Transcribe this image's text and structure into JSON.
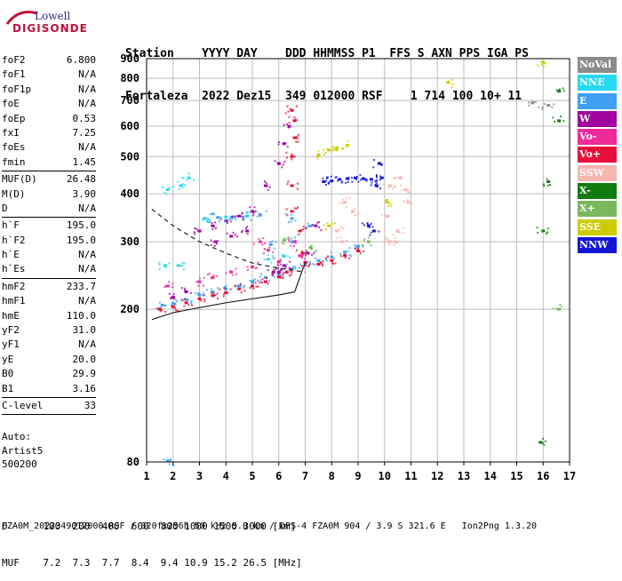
{
  "logo": {
    "top": "Lowell",
    "bottom": "DIGISONDE"
  },
  "header": {
    "columns": "Station    YYYY DAY    DDD HHMMSS P1  FFS S AXN PPS IGA PS",
    "values": "Fortaleza  2022 Dez15  349 012000 RSF    1 714 100 10+ 11"
  },
  "parameters": [
    {
      "name": "foF2",
      "value": "6.800"
    },
    {
      "name": "foF1",
      "value": "N/A"
    },
    {
      "name": "foF1p",
      "value": "N/A"
    },
    {
      "name": "foE",
      "value": "N/A"
    },
    {
      "name": "foEp",
      "value": "0.53"
    },
    {
      "name": "fxI",
      "value": "7.25"
    },
    {
      "name": "foEs",
      "value": "N/A"
    },
    {
      "name": "fmin",
      "value": "1.45"
    },
    {
      "sep": true
    },
    {
      "name": "MUF(D)",
      "value": "26.48"
    },
    {
      "name": "M(D)",
      "value": "3.90"
    },
    {
      "name": "D",
      "value": "N/A"
    },
    {
      "sep": true
    },
    {
      "name": "h`F",
      "value": "195.0"
    },
    {
      "name": "h`F2",
      "value": "195.0"
    },
    {
      "name": "h`E",
      "value": "N/A"
    },
    {
      "name": "h`Es",
      "value": "N/A"
    },
    {
      "sep": true
    },
    {
      "name": "hmF2",
      "value": "233.7"
    },
    {
      "name": "hmF1",
      "value": "N/A"
    },
    {
      "name": "hmE",
      "value": "110.0"
    },
    {
      "name": "yF2",
      "value": "31.0"
    },
    {
      "name": "yF1",
      "value": "N/A"
    },
    {
      "name": "yE",
      "value": "20.0"
    },
    {
      "name": "B0",
      "value": "29.9"
    },
    {
      "name": "B1",
      "value": "3.16"
    },
    {
      "sep": true
    },
    {
      "name": "C-level",
      "value": "33"
    },
    {
      "sep": true
    }
  ],
  "auto": {
    "line1": "Auto:",
    "line2": "Artist5",
    "line3": "500200"
  },
  "bottom_table": {
    "d_line": "D      100  200  400  600  800 1000 1500 3000 [km]",
    "muf_line": "MUF    7.2  7.3  7.7  8.4  9.4 10.9 15.2 26.5 [MHz]"
  },
  "footer": "FZA0M_2022349012000.RSF / 320fx256h 50 kHz 5.0 km / DPS-4 FZA0M 904 / 3.9 S 321.6 E   Ion2Png 1.3.20",
  "legend": [
    {
      "label": "NoVal",
      "color": "#8c8c8c"
    },
    {
      "label": "NNE",
      "color": "#26d9f2"
    },
    {
      "label": "E",
      "color": "#3fa0f5"
    },
    {
      "label": "W",
      "color": "#a0069f"
    },
    {
      "label": "Vo-",
      "color": "#f02a9a"
    },
    {
      "label": "Vo+",
      "color": "#e8103a"
    },
    {
      "label": "SSW",
      "color": "#f7b6b0"
    },
    {
      "label": "X-",
      "color": "#107c10"
    },
    {
      "label": "X+",
      "color": "#7ab85e"
    },
    {
      "label": "SSE",
      "color": "#cccc00"
    },
    {
      "label": "NNW",
      "color": "#1515d8"
    }
  ],
  "chart_data": {
    "type": "scatter",
    "title": "",
    "xlabel": "",
    "ylabel": "",
    "xlim": [
      1,
      17
    ],
    "ylim": [
      80,
      900
    ],
    "y_scale": "log",
    "x_ticks": [
      1,
      2,
      3,
      4,
      5,
      6,
      7,
      8,
      9,
      10,
      11,
      12,
      13,
      14,
      15,
      16,
      17
    ],
    "y_ticks": [
      80,
      200,
      300,
      400,
      500,
      600,
      700,
      800,
      900
    ],
    "grid": true,
    "legend_position": "right",
    "series": [
      {
        "name": "E",
        "points": [
          [
            1.6,
            205
          ],
          [
            2,
            207
          ],
          [
            2.5,
            212
          ],
          [
            3,
            218
          ],
          [
            3.5,
            222
          ],
          [
            4,
            226
          ],
          [
            4.5,
            230
          ],
          [
            5,
            236
          ],
          [
            5.5,
            242
          ],
          [
            6,
            248
          ],
          [
            6.5,
            255
          ],
          [
            7,
            262
          ],
          [
            7.5,
            268
          ],
          [
            8,
            274
          ],
          [
            8.5,
            282
          ],
          [
            9,
            292
          ],
          [
            1.8,
            80.5
          ],
          [
            5.7,
            295
          ],
          [
            6.5,
            300
          ],
          [
            7.2,
            330
          ],
          [
            3.2,
            345
          ],
          [
            3.7,
            347
          ],
          [
            4.3,
            348
          ],
          [
            4.8,
            350
          ],
          [
            5.3,
            352
          ],
          [
            6.5,
            345
          ]
        ]
      },
      {
        "name": "Vo+",
        "points": [
          [
            1.5,
            200
          ],
          [
            2,
            203
          ],
          [
            2.5,
            208
          ],
          [
            3,
            213
          ],
          [
            3.5,
            217
          ],
          [
            4,
            221
          ],
          [
            4.5,
            226
          ],
          [
            5,
            230
          ],
          [
            5.5,
            236
          ],
          [
            6,
            243
          ],
          [
            6.3,
            250
          ],
          [
            6.5,
            360
          ],
          [
            6.5,
            420
          ],
          [
            6.5,
            500
          ],
          [
            6.6,
            560
          ],
          [
            6.6,
            620
          ],
          [
            6.5,
            660
          ],
          [
            6.8,
            320
          ],
          [
            6.9,
            280
          ],
          [
            7,
            265
          ],
          [
            7.5,
            262
          ],
          [
            8,
            268
          ],
          [
            8.5,
            276
          ],
          [
            9,
            284
          ]
        ]
      },
      {
        "name": "W",
        "points": [
          [
            2,
            215
          ],
          [
            2.5,
            222
          ],
          [
            3,
            320
          ],
          [
            3.5,
            330
          ],
          [
            4,
            340
          ],
          [
            4.5,
            350
          ],
          [
            5,
            360
          ],
          [
            5.5,
            420
          ],
          [
            6,
            480
          ],
          [
            6.2,
            540
          ],
          [
            6.4,
            600
          ],
          [
            5.8,
            250
          ],
          [
            6,
            250
          ],
          [
            6.2,
            260
          ],
          [
            7.1,
            280
          ],
          [
            7.4,
            330
          ],
          [
            3.6,
            300
          ],
          [
            4.2,
            310
          ],
          [
            4.8,
            320
          ]
        ]
      },
      {
        "name": "NNW",
        "points": [
          [
            7.7,
            430
          ],
          [
            8,
            432
          ],
          [
            8.3,
            436
          ],
          [
            8.6,
            438
          ],
          [
            8.9,
            440
          ],
          [
            9.2,
            438
          ],
          [
            9.5,
            436
          ],
          [
            9.9,
            440
          ],
          [
            9.7,
            420
          ],
          [
            9.6,
            320
          ],
          [
            9.4,
            330
          ],
          [
            9.8,
            480
          ]
        ]
      },
      {
        "name": "SSW",
        "points": [
          [
            10.2,
            300
          ],
          [
            10.5,
            320
          ],
          [
            10.9,
            380
          ],
          [
            10.2,
            420
          ],
          [
            10.6,
            440
          ],
          [
            10.8,
            410
          ],
          [
            8.4,
            300
          ],
          [
            8.8,
            360
          ],
          [
            10.1,
            350
          ],
          [
            8.2,
            320
          ],
          [
            10.4,
            300
          ],
          [
            8.5,
            380
          ]
        ]
      },
      {
        "name": "Vo-",
        "points": [
          [
            1.8,
            230
          ],
          [
            3,
            236
          ],
          [
            3.5,
            242
          ],
          [
            4.2,
            250
          ],
          [
            5,
            258
          ],
          [
            6,
            266
          ],
          [
            6.8,
            276
          ],
          [
            5.6,
            285
          ],
          [
            5.3,
            300
          ],
          [
            6.6,
            300
          ]
        ]
      },
      {
        "name": "NNE",
        "points": [
          [
            1.8,
            410
          ],
          [
            2.3,
            420
          ],
          [
            2.6,
            440
          ],
          [
            3.2,
            345
          ],
          [
            4,
            348
          ],
          [
            4.8,
            350
          ],
          [
            1.7,
            260
          ],
          [
            2.2,
            260
          ],
          [
            5.6,
            270
          ],
          [
            6.2,
            275
          ]
        ]
      },
      {
        "name": "SSE",
        "points": [
          [
            7.9,
            520
          ],
          [
            8.2,
            525
          ],
          [
            8.6,
            535
          ],
          [
            7.5,
            505
          ],
          [
            7.9,
            330
          ],
          [
            10.1,
            380
          ],
          [
            16,
            880
          ],
          [
            12.4,
            780
          ]
        ]
      },
      {
        "name": "X-",
        "points": [
          [
            16,
            320
          ],
          [
            16.6,
            620
          ],
          [
            16.6,
            740
          ],
          [
            16.2,
            430
          ],
          [
            15.9,
            90
          ]
        ]
      },
      {
        "name": "X+",
        "points": [
          [
            6.2,
            302
          ],
          [
            7.2,
            290
          ],
          [
            9.4,
            300
          ],
          [
            16.6,
            200
          ]
        ]
      },
      {
        "name": "NoVal",
        "points": [
          [
            16.2,
            680
          ],
          [
            15.6,
            690
          ]
        ]
      }
    ],
    "curves": [
      {
        "name": "dashed",
        "style": "dashed",
        "points": [
          [
            1.2,
            365
          ],
          [
            2,
            330
          ],
          [
            3,
            300
          ],
          [
            4,
            280
          ],
          [
            5,
            264
          ],
          [
            6,
            256
          ],
          [
            7,
            250
          ]
        ]
      },
      {
        "name": "solid",
        "style": "solid",
        "points": [
          [
            1.2,
            188
          ],
          [
            2,
            196
          ],
          [
            3,
            202
          ],
          [
            4,
            208
          ],
          [
            5,
            213
          ],
          [
            6,
            218
          ],
          [
            6.6,
            222
          ],
          [
            7,
            265
          ]
        ]
      }
    ]
  }
}
